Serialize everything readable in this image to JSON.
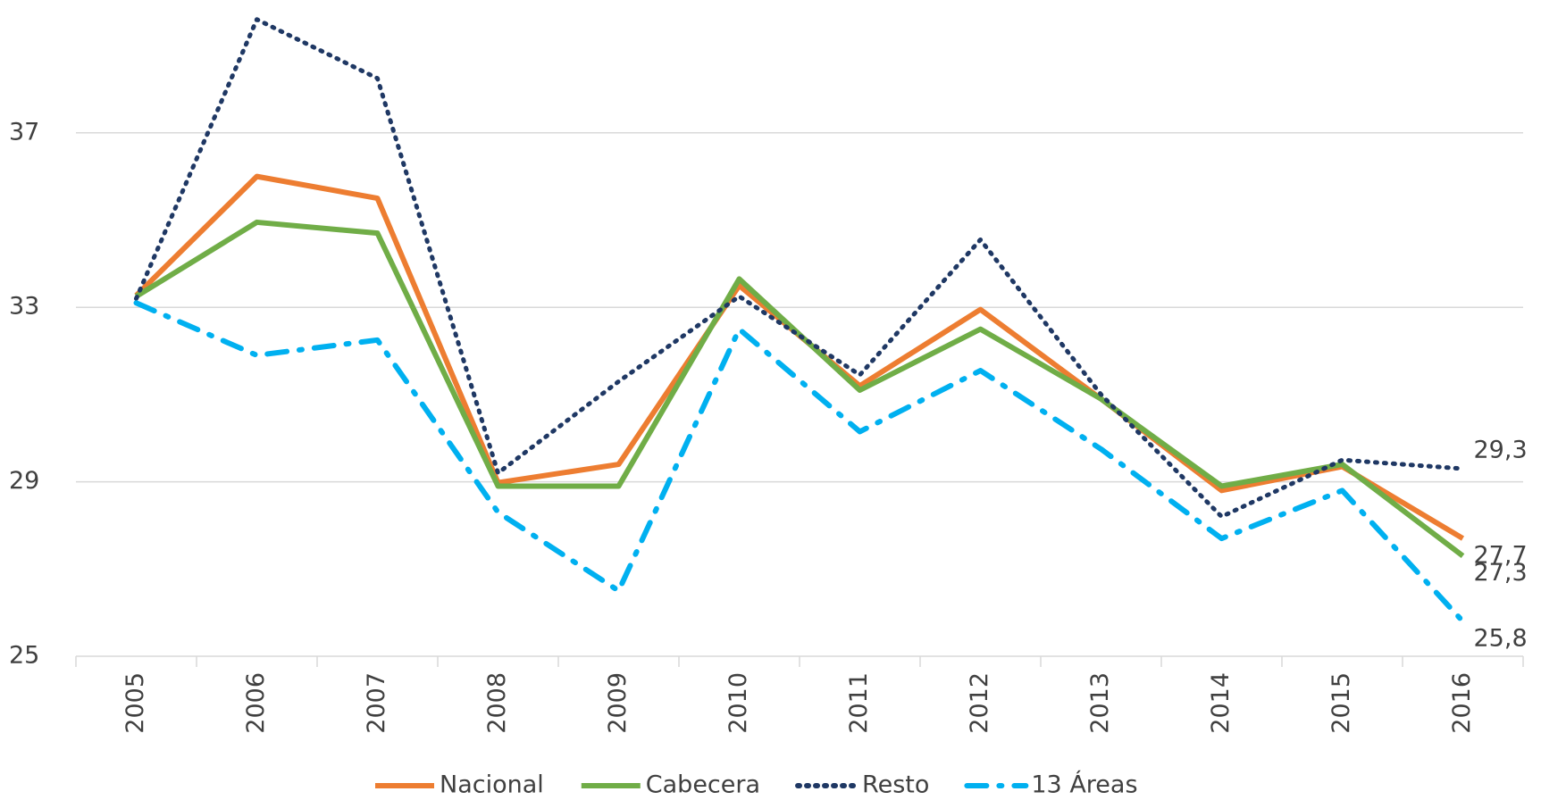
{
  "chart_data": {
    "type": "line",
    "categories": [
      "2005",
      "2006",
      "2007",
      "2008",
      "2009",
      "2010",
      "2011",
      "2012",
      "2013",
      "2014",
      "2015",
      "2016"
    ],
    "series": [
      {
        "name": "Nacional",
        "color": "#ed7d31",
        "dash": "solid",
        "values": [
          33.27,
          36.0,
          35.5,
          28.98,
          29.4,
          33.5,
          31.2,
          32.95,
          30.9,
          28.8,
          29.35,
          27.7
        ],
        "value_labels": [
          null,
          null,
          null,
          null,
          null,
          null,
          null,
          null,
          null,
          null,
          null,
          "27,7"
        ]
      },
      {
        "name": "Cabecera",
        "color": "#70ad47",
        "dash": "solid",
        "values": [
          33.25,
          34.95,
          34.7,
          28.9,
          28.9,
          33.65,
          31.1,
          32.5,
          30.9,
          28.9,
          29.4,
          27.3
        ],
        "value_labels": [
          null,
          null,
          null,
          null,
          null,
          null,
          null,
          null,
          null,
          null,
          null,
          "27,3"
        ]
      },
      {
        "name": "Resto",
        "color": "#1f3864",
        "dash": "dot",
        "values": [
          33.2,
          39.6,
          38.25,
          29.2,
          31.3,
          33.25,
          31.45,
          34.55,
          31.0,
          28.2,
          29.5,
          29.3
        ],
        "value_labels": [
          null,
          null,
          null,
          null,
          null,
          null,
          null,
          null,
          null,
          null,
          null,
          "29,3"
        ]
      },
      {
        "name": "13 Áreas",
        "color": "#00b0f0",
        "dash": "dashdot",
        "values": [
          33.1,
          31.9,
          32.25,
          28.3,
          26.5,
          32.5,
          30.15,
          31.55,
          29.75,
          27.7,
          28.8,
          25.8
        ],
        "value_labels": [
          null,
          null,
          null,
          null,
          null,
          null,
          null,
          null,
          null,
          null,
          null,
          "25,8"
        ]
      }
    ],
    "ylim": [
      25,
      39.8
    ],
    "yticks": [
      25,
      29,
      33,
      37
    ],
    "grid": true,
    "legend": "bottom"
  }
}
